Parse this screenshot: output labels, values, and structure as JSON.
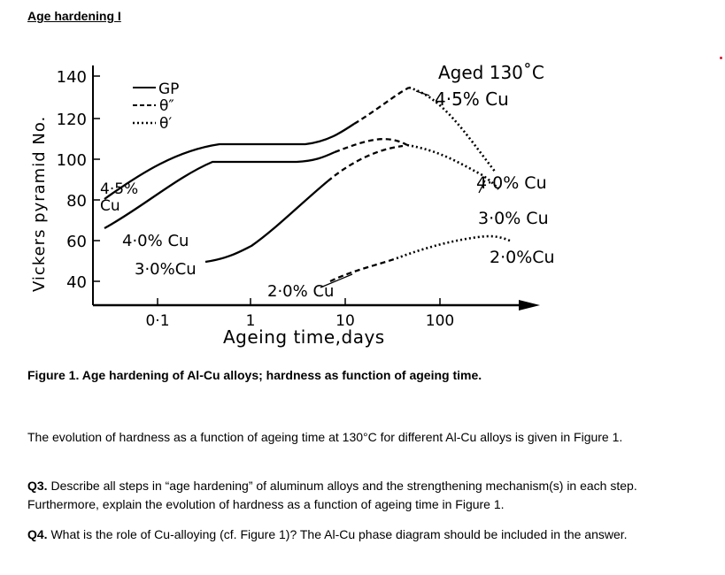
{
  "heading": "Age hardening I",
  "figure": {
    "ylabel": "Vickers pyramid No.",
    "yticks": [
      "140",
      "120",
      "100",
      "80",
      "60",
      "40"
    ],
    "xticks": [
      "0·1",
      "1",
      "10",
      "100"
    ],
    "xlabel": "Ageing time,days",
    "legend": [
      "GP",
      "θ″",
      "θ′"
    ],
    "condition_line1": "Aged 130˚C",
    "condition_line2": "4·5% Cu",
    "labels": {
      "cu45_a": "4·5%",
      "cu45_b": "Cu",
      "cu40_left": "4·0% Cu",
      "cu30_left": "3·0%Cu",
      "cu20": "2·0% Cu",
      "cu40_right": "4·0% Cu",
      "cu30_right": "3·0% Cu",
      "cu20_right": "2·0%Cu"
    }
  },
  "chart_data": {
    "type": "line",
    "xscale": "log",
    "xlabel": "Ageing time,days",
    "ylabel": "Vickers pyramid No.",
    "ylim": [
      40,
      140
    ],
    "series": [
      {
        "name": "4·5% Cu",
        "x": [
          0.1,
          0.3,
          1,
          4,
          20,
          60,
          200
        ],
        "y": [
          85,
          108,
          108,
          115,
          133,
          128,
          100
        ]
      },
      {
        "name": "4·0% Cu",
        "x": [
          0.1,
          0.3,
          1,
          4,
          20,
          60,
          200
        ],
        "y": [
          76,
          98,
          99,
          103,
          114,
          112,
          88
        ]
      },
      {
        "name": "3·0% Cu",
        "x": [
          0.1,
          1,
          4,
          20,
          60,
          200
        ],
        "y": [
          51,
          61,
          86,
          107,
          103,
          78
        ]
      },
      {
        "name": "2·0% Cu",
        "x": [
          1,
          5,
          20,
          80
        ],
        "y": [
          40,
          45,
          54,
          65
        ]
      }
    ]
  },
  "caption": "Figure 1. Age hardening of Al-Cu alloys; hardness as function of ageing time.",
  "paragraph1": "The evolution of hardness as a function of ageing time at 130°C for different Al-Cu alloys is given in Figure 1.",
  "q3": {
    "label": "Q3.",
    "text": " Describe all steps in “age hardening” of aluminum alloys and the strengthening mechanism(s) in each step. Furthermore, explain the evolution of hardness as a function of ageing time in Figure 1."
  },
  "q4": {
    "label": "Q4.",
    "text": " What is the role of Cu-alloying (cf. Figure 1)? The Al-Cu phase diagram should be included in the answer."
  }
}
